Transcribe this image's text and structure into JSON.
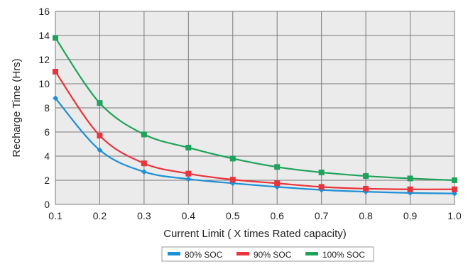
{
  "chart_data": {
    "type": "line",
    "title": "",
    "xlabel": "Current Limit ( X times Rated capacity)",
    "ylabel": "Recharge Time (Hrs)",
    "xlim": [
      0.1,
      1.0
    ],
    "ylim": [
      0,
      16
    ],
    "x_ticks": [
      "0.1",
      "0.2",
      "0.3",
      "0.4",
      "0.5",
      "0.6",
      "0.7",
      "0.8",
      "0.9",
      "1.0"
    ],
    "y_ticks": [
      "0",
      "2",
      "4",
      "6",
      "8",
      "10",
      "12",
      "14",
      "16"
    ],
    "grid": true,
    "legend_position": "bottom",
    "x": [
      0.1,
      0.2,
      0.3,
      0.4,
      0.5,
      0.6,
      0.7,
      0.8,
      0.9,
      1.0
    ],
    "series": [
      {
        "name": "80% SOC",
        "color": "#1e90d6",
        "marker": "diamond",
        "values": [
          8.8,
          4.5,
          2.7,
          2.1,
          1.75,
          1.45,
          1.2,
          1.05,
          0.95,
          0.9
        ]
      },
      {
        "name": "90% SOC",
        "color": "#e8343a",
        "marker": "square",
        "values": [
          11.0,
          5.7,
          3.4,
          2.55,
          2.05,
          1.75,
          1.45,
          1.3,
          1.25,
          1.25
        ]
      },
      {
        "name": "100% SOC",
        "color": "#1fa25a",
        "marker": "square",
        "values": [
          13.8,
          8.4,
          5.8,
          4.7,
          3.8,
          3.1,
          2.65,
          2.35,
          2.15,
          2.0
        ]
      }
    ]
  }
}
